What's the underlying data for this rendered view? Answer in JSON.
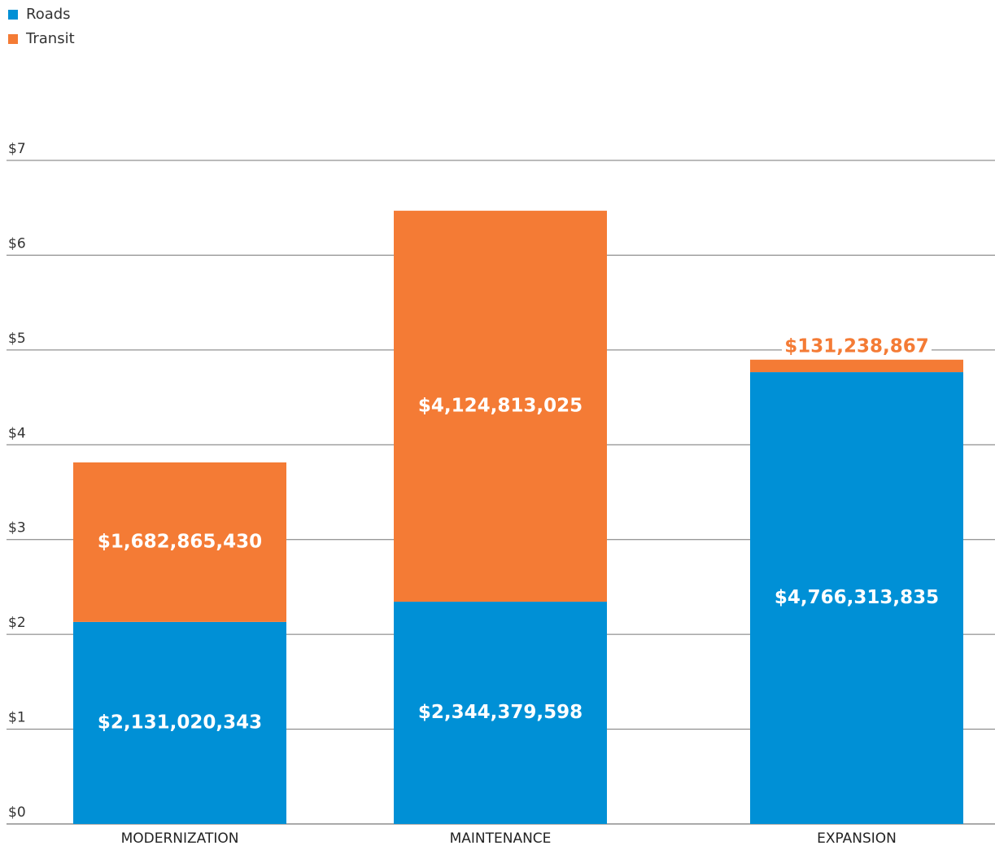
{
  "chart_data": {
    "type": "stacked-bar",
    "categories": [
      "MODERNIZATION",
      "MAINTENANCE",
      "EXPANSION"
    ],
    "series": [
      {
        "name": "Roads",
        "color": "#0090d6",
        "values": [
          2.131020343,
          2.344379598,
          4.766313835
        ],
        "value_labels": [
          "$2,131,020,343",
          "$2,344,379,598",
          "$4,766,313,835"
        ]
      },
      {
        "name": "Transit",
        "color": "#f47b35",
        "values": [
          1.68286543,
          4.124813025,
          0.131238867
        ],
        "value_labels": [
          "$1,682,865,430",
          "$4,124,813,025",
          "$131,238,867"
        ]
      }
    ],
    "ylim": [
      0,
      7
    ],
    "yticks": [
      {
        "value": 0,
        "label": "$0"
      },
      {
        "value": 1,
        "label": "$1"
      },
      {
        "value": 2,
        "label": "$2"
      },
      {
        "value": 3,
        "label": "$3"
      },
      {
        "value": 4,
        "label": "$4"
      },
      {
        "value": 5,
        "label": "$5"
      },
      {
        "value": 6,
        "label": "$6"
      },
      {
        "value": 7,
        "label": "$7"
      }
    ],
    "grid": true,
    "legend": "top-left"
  }
}
